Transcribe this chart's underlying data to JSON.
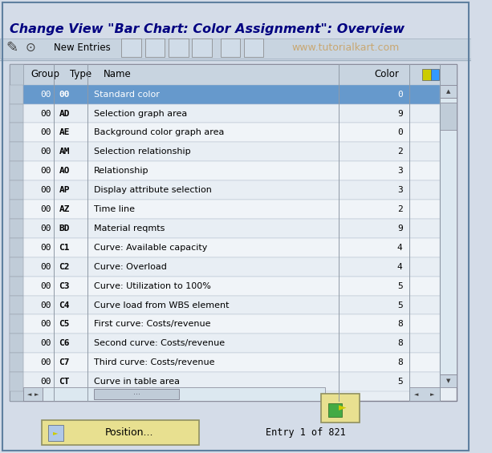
{
  "title": "Change View \"Bar Chart: Color Assignment\": Overview",
  "watermark": "www.tutorialkart.com",
  "bg_color": "#d4dce8",
  "toolbar_bg": "#c8d4e0",
  "table_header_bg": "#c8d4e0",
  "row_selected_bg": "#6699cc",
  "rows": [
    [
      "00",
      "00",
      "Standard color",
      "0"
    ],
    [
      "00",
      "AD",
      "Selection graph area",
      "9"
    ],
    [
      "00",
      "AE",
      "Background color graph area",
      "0"
    ],
    [
      "00",
      "AM",
      "Selection relationship",
      "2"
    ],
    [
      "00",
      "AO",
      "Relationship",
      "3"
    ],
    [
      "00",
      "AP",
      "Display attribute selection",
      "3"
    ],
    [
      "00",
      "AZ",
      "Time line",
      "2"
    ],
    [
      "00",
      "BD",
      "Material reqmts",
      "9"
    ],
    [
      "00",
      "C1",
      "Curve: Available capacity",
      "4"
    ],
    [
      "00",
      "C2",
      "Curve: Overload",
      "4"
    ],
    [
      "00",
      "C3",
      "Curve: Utilization to 100%",
      "5"
    ],
    [
      "00",
      "C4",
      "Curve load from WBS element",
      "5"
    ],
    [
      "00",
      "C5",
      "First curve: Costs/revenue",
      "8"
    ],
    [
      "00",
      "C6",
      "Second curve: Costs/revenue",
      "8"
    ],
    [
      "00",
      "C7",
      "Third curve: Costs/revenue",
      "8"
    ],
    [
      "00",
      "CT",
      "Curve in table area",
      "5"
    ]
  ],
  "selected_row": 0,
  "entry_text": "Entry 1 of 821",
  "position_btn": "Position...",
  "new_entries_text": "New Entries"
}
